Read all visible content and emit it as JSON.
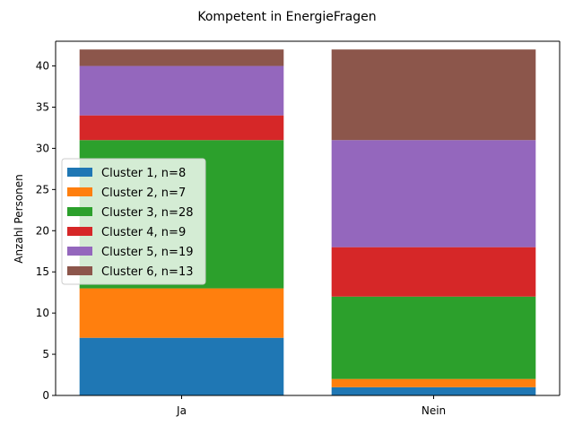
{
  "chart_data": {
    "type": "bar",
    "stacked": true,
    "title": "Kompetent in EnergieFragen",
    "xlabel": "",
    "ylabel": "Anzahl Personen",
    "categories": [
      "Ja",
      "Nein"
    ],
    "ylim": [
      0,
      43
    ],
    "yticks": [
      0,
      5,
      10,
      15,
      20,
      25,
      30,
      35,
      40
    ],
    "grid": false,
    "legend_position": "center-left",
    "series": [
      {
        "name": "Cluster 1, n=8",
        "color": "#1f77b4",
        "values": [
          7,
          1
        ]
      },
      {
        "name": "Cluster 2, n=7",
        "color": "#ff7f0e",
        "values": [
          6,
          1
        ]
      },
      {
        "name": "Cluster 3, n=28",
        "color": "#2ca02c",
        "values": [
          18,
          10
        ]
      },
      {
        "name": "Cluster 4, n=9",
        "color": "#d62728",
        "values": [
          3,
          6
        ]
      },
      {
        "name": "Cluster 5, n=19",
        "color": "#9467bd",
        "values": [
          6,
          13
        ]
      },
      {
        "name": "Cluster 6, n=13",
        "color": "#8c564b",
        "values": [
          2,
          11
        ]
      }
    ]
  }
}
